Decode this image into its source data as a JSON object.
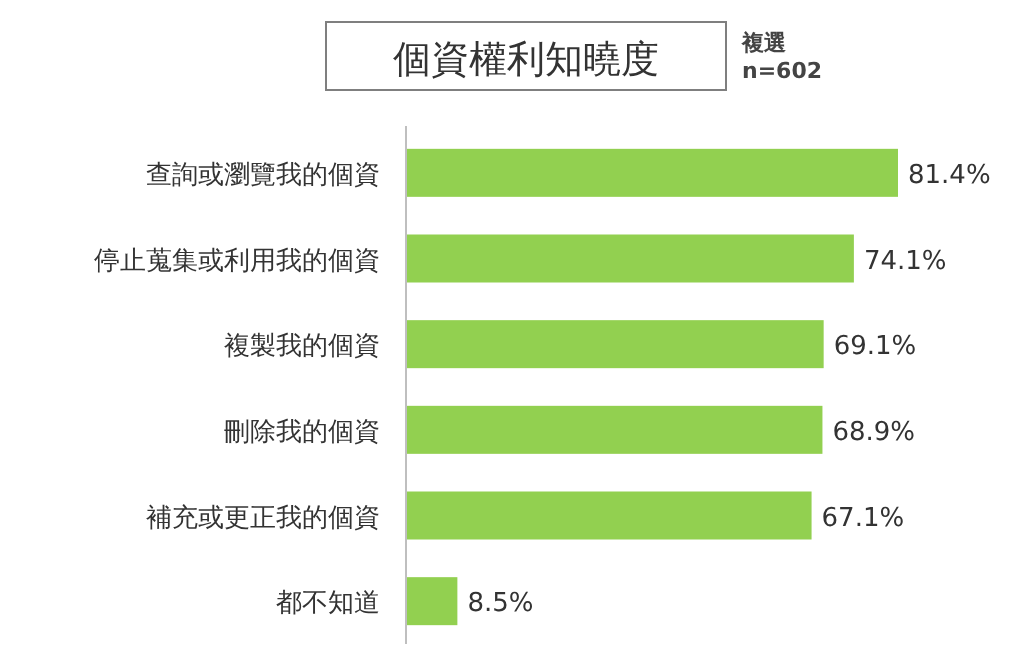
{
  "chart_data": {
    "type": "bar",
    "orientation": "horizontal",
    "title": "個資權利知曉度",
    "annotations": [
      "複選",
      "n=602"
    ],
    "categories": [
      "查詢或瀏覽我的個資",
      "停止蒐集或利用我的個資",
      "複製我的個資",
      "刪除我的個資",
      "補充或更正我的個資",
      "都不知道"
    ],
    "values": [
      81.4,
      74.1,
      69.1,
      68.9,
      67.1,
      8.5
    ],
    "color": "#92d050",
    "value_labels": [
      "81.4%",
      "74.1%",
      "69.1%",
      "68.9%",
      "67.1%",
      "8.5%"
    ]
  }
}
